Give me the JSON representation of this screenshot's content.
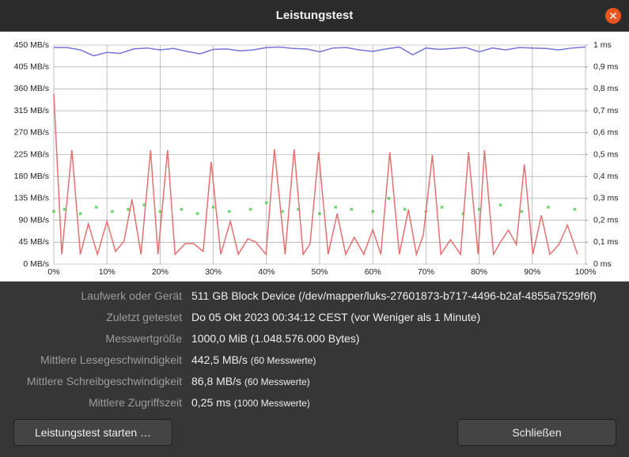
{
  "window": {
    "title": "Leistungstest"
  },
  "chart_data": {
    "type": "line",
    "xlim": [
      0,
      100
    ],
    "ylim": [
      0,
      450
    ],
    "y2lim": [
      0,
      1
    ],
    "grid": true,
    "xticks": [
      {
        "value": 0,
        "label": "0%"
      },
      {
        "value": 10,
        "label": "10%"
      },
      {
        "value": 20,
        "label": "20%"
      },
      {
        "value": 30,
        "label": "30%"
      },
      {
        "value": 40,
        "label": "40%"
      },
      {
        "value": 50,
        "label": "50%"
      },
      {
        "value": 60,
        "label": "60%"
      },
      {
        "value": 70,
        "label": "70%"
      },
      {
        "value": 80,
        "label": "80%"
      },
      {
        "value": 90,
        "label": "90%"
      },
      {
        "value": 100,
        "label": "100%"
      }
    ],
    "yticks": [
      {
        "value": 0,
        "label": "0 MB/s"
      },
      {
        "value": 45,
        "label": "45 MB/s"
      },
      {
        "value": 90,
        "label": "90 MB/s"
      },
      {
        "value": 135,
        "label": "135 MB/s"
      },
      {
        "value": 180,
        "label": "180 MB/s"
      },
      {
        "value": 225,
        "label": "225 MB/s"
      },
      {
        "value": 270,
        "label": "270 MB/s"
      },
      {
        "value": 315,
        "label": "315 MB/s"
      },
      {
        "value": 360,
        "label": "360 MB/s"
      },
      {
        "value": 405,
        "label": "405 MB/s"
      },
      {
        "value": 450,
        "label": "450 MB/s"
      }
    ],
    "y2ticks": [
      {
        "value": 0,
        "label": "0 ms"
      },
      {
        "value": 0.1,
        "label": "0,1 ms"
      },
      {
        "value": 0.2,
        "label": "0,2 ms"
      },
      {
        "value": 0.3,
        "label": "0,3 ms"
      },
      {
        "value": 0.4,
        "label": "0,4 ms"
      },
      {
        "value": 0.5,
        "label": "0,5 ms"
      },
      {
        "value": 0.6,
        "label": "0,6 ms"
      },
      {
        "value": 0.7,
        "label": "0,7 ms"
      },
      {
        "value": 0.8,
        "label": "0,8 ms"
      },
      {
        "value": 0.9,
        "label": "0,9 ms"
      },
      {
        "value": 1,
        "label": "1 ms"
      }
    ],
    "series": [
      {
        "type": "scatter",
        "axis": "y2",
        "color": "#3ec43e",
        "x": [
          0,
          2,
          5,
          8,
          11,
          14,
          17,
          20,
          24,
          27,
          30,
          33,
          37,
          40,
          43,
          46,
          50,
          53,
          56,
          60,
          63,
          66,
          70,
          73,
          77,
          80,
          84,
          88,
          93,
          98
        ],
        "values": [
          0.24,
          0.25,
          0.23,
          0.26,
          0.24,
          0.25,
          0.27,
          0.24,
          0.25,
          0.23,
          0.26,
          0.24,
          0.25,
          0.28,
          0.24,
          0.25,
          0.23,
          0.26,
          0.25,
          0.24,
          0.3,
          0.25,
          0.24,
          0.26,
          0.23,
          0.25,
          0.27,
          0.24,
          0.26,
          0.25
        ]
      },
      {
        "type": "line",
        "color": "#7575d8",
        "x": [
          0,
          2.5,
          5,
          7.5,
          10,
          12.5,
          15,
          17.5,
          20,
          22.5,
          25,
          27.5,
          30,
          32.5,
          35,
          37.5,
          40,
          42.5,
          45,
          47.5,
          50,
          52.5,
          55,
          57.5,
          60,
          62.5,
          65,
          67.5,
          70,
          72.5,
          75,
          77.5,
          80,
          82.5,
          85,
          87.5,
          90,
          92.5,
          95,
          97.5,
          100
        ],
        "values": [
          445,
          445,
          440,
          428,
          435,
          433,
          442,
          444,
          440,
          443,
          437,
          432,
          441,
          442,
          438,
          440,
          445,
          446,
          443,
          442,
          436,
          444,
          445,
          440,
          437,
          442,
          446,
          430,
          444,
          441,
          443,
          445,
          436,
          444,
          440,
          445,
          444,
          443,
          440,
          444,
          446
        ]
      },
      {
        "type": "line",
        "color": "#e86f6f",
        "x": [
          0,
          1.5,
          3.4,
          5,
          6.5,
          8.2,
          10,
          11.6,
          13.2,
          14.7,
          16.4,
          18.2,
          19.6,
          21.4,
          22.8,
          24.7,
          26.3,
          28.1,
          29.6,
          31.4,
          33.2,
          34.7,
          36.5,
          38,
          39.9,
          41.5,
          43.5,
          45.2,
          46.9,
          48.2,
          49.8,
          51.6,
          53.3,
          54.9,
          56.5,
          58.3,
          60,
          61.5,
          63.2,
          65,
          66.7,
          68.2,
          69.5,
          71.2,
          72.8,
          74.6,
          76.5,
          78,
          79.8,
          81,
          82.7,
          84,
          85.5,
          87,
          88.5,
          90.1,
          91.7,
          93.3,
          95,
          96.6,
          98.5
        ],
        "values": [
          350,
          20,
          234,
          20,
          83,
          20,
          88,
          26,
          47,
          133,
          20,
          234,
          20,
          234,
          20,
          42,
          42,
          26,
          210,
          20,
          88,
          20,
          52,
          45,
          20,
          236,
          20,
          236,
          20,
          42,
          230,
          20,
          104,
          20,
          55,
          20,
          71,
          20,
          230,
          20,
          112,
          20,
          60,
          224,
          20,
          50,
          20,
          230,
          20,
          234,
          20,
          45,
          70,
          40,
          205,
          20,
          100,
          20,
          40,
          80,
          20
        ]
      }
    ]
  },
  "info": {
    "rows": [
      {
        "label": "Laufwerk oder Gerät",
        "value": "511 GB Block Device (/dev/mapper/luks-27601873-b717-4496-b2af-4855a7529f6f)"
      },
      {
        "label": "Zuletzt getestet",
        "value": "Do 05 Okt 2023 00:34:12 CEST (vor Weniger als 1 Minute)"
      },
      {
        "label": "Messwertgröße",
        "value": "1000,0 MiB (1.048.576.000 Bytes)"
      },
      {
        "label": "Mittlere Lesegeschwindigkeit",
        "value": "442,5 MB/s",
        "note": "(60 Messwerte)"
      },
      {
        "label": "Mittlere Schreibgeschwindigkeit",
        "value": "86,8 MB/s",
        "note": "(60 Messwerte)"
      },
      {
        "label": "Mittlere Zugriffszeit",
        "value": "0,25 ms",
        "note": "(1000 Messwerte)"
      }
    ]
  },
  "buttons": {
    "start": "Leistungstest starten …",
    "close": "Schließen"
  }
}
